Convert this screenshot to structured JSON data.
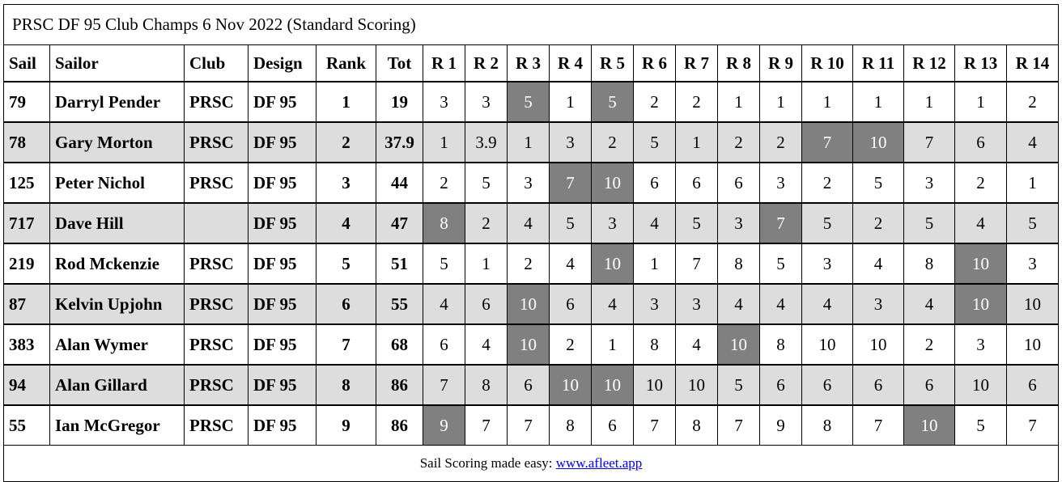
{
  "title": "PRSC DF 95 Club Champs 6 Nov 2022 (Standard Scoring)",
  "columns": [
    "Sail",
    "Sailor",
    "Club",
    "Design",
    "Rank",
    "Tot",
    "R 1",
    "R 2",
    "R 3",
    "R 4",
    "R 5",
    "R 6",
    "R 7",
    "R 8",
    "R 9",
    "R 10",
    "R 11",
    "R 12",
    "R 13",
    "R 14"
  ],
  "discard_color": "#808080",
  "alt_row_color": "#dddddd",
  "rows": [
    {
      "sail": "79",
      "sailor": "Darryl Pender",
      "club": "PRSC",
      "design": "DF 95",
      "rank": "1",
      "tot": "19",
      "races": [
        "3",
        "3",
        "5",
        "1",
        "5",
        "2",
        "2",
        "1",
        "1",
        "1",
        "1",
        "1",
        "1",
        "2"
      ],
      "discards": [
        3,
        5
      ]
    },
    {
      "sail": "78",
      "sailor": "Gary Morton",
      "club": "PRSC",
      "design": "DF 95",
      "rank": "2",
      "tot": "37.9",
      "races": [
        "1",
        "3.9",
        "1",
        "3",
        "2",
        "5",
        "1",
        "2",
        "2",
        "7",
        "10",
        "7",
        "6",
        "4"
      ],
      "discards": [
        10,
        11
      ]
    },
    {
      "sail": "125",
      "sailor": "Peter Nichol",
      "club": "PRSC",
      "design": "DF 95",
      "rank": "3",
      "tot": "44",
      "races": [
        "2",
        "5",
        "3",
        "7",
        "10",
        "6",
        "6",
        "6",
        "3",
        "2",
        "5",
        "3",
        "2",
        "1"
      ],
      "discards": [
        4,
        5
      ]
    },
    {
      "sail": "717",
      "sailor": "Dave Hill",
      "club": "",
      "design": "DF 95",
      "rank": "4",
      "tot": "47",
      "races": [
        "8",
        "2",
        "4",
        "5",
        "3",
        "4",
        "5",
        "3",
        "7",
        "5",
        "2",
        "5",
        "4",
        "5"
      ],
      "discards": [
        1,
        9
      ]
    },
    {
      "sail": "219",
      "sailor": "Rod Mckenzie",
      "club": "PRSC",
      "design": "DF 95",
      "rank": "5",
      "tot": "51",
      "races": [
        "5",
        "1",
        "2",
        "4",
        "10",
        "1",
        "7",
        "8",
        "5",
        "3",
        "4",
        "8",
        "10",
        "3"
      ],
      "discards": [
        5,
        13
      ]
    },
    {
      "sail": "87",
      "sailor": "Kelvin Upjohn",
      "club": "PRSC",
      "design": "DF 95",
      "rank": "6",
      "tot": "55",
      "races": [
        "4",
        "6",
        "10",
        "6",
        "4",
        "3",
        "3",
        "4",
        "4",
        "4",
        "3",
        "4",
        "10",
        "10"
      ],
      "discards": [
        3,
        13
      ]
    },
    {
      "sail": "383",
      "sailor": "Alan Wymer",
      "club": "PRSC",
      "design": "DF 95",
      "rank": "7",
      "tot": "68",
      "races": [
        "6",
        "4",
        "10",
        "2",
        "1",
        "8",
        "4",
        "10",
        "8",
        "10",
        "10",
        "2",
        "3",
        "10"
      ],
      "discards": [
        3,
        8
      ]
    },
    {
      "sail": "94",
      "sailor": "Alan Gillard",
      "club": "PRSC",
      "design": "DF 95",
      "rank": "8",
      "tot": "86",
      "races": [
        "7",
        "8",
        "6",
        "10",
        "10",
        "10",
        "10",
        "5",
        "6",
        "6",
        "6",
        "6",
        "10",
        "6"
      ],
      "discards": [
        4,
        5
      ]
    },
    {
      "sail": "55",
      "sailor": "Ian McGregor",
      "club": "PRSC",
      "design": "DF 95",
      "rank": "9",
      "tot": "86",
      "races": [
        "9",
        "7",
        "7",
        "8",
        "6",
        "7",
        "8",
        "7",
        "9",
        "8",
        "7",
        "10",
        "5",
        "7"
      ],
      "discards": [
        1,
        12
      ]
    }
  ],
  "footer": {
    "text": "Sail Scoring made easy: ",
    "link_text": "www.afleet.app"
  }
}
